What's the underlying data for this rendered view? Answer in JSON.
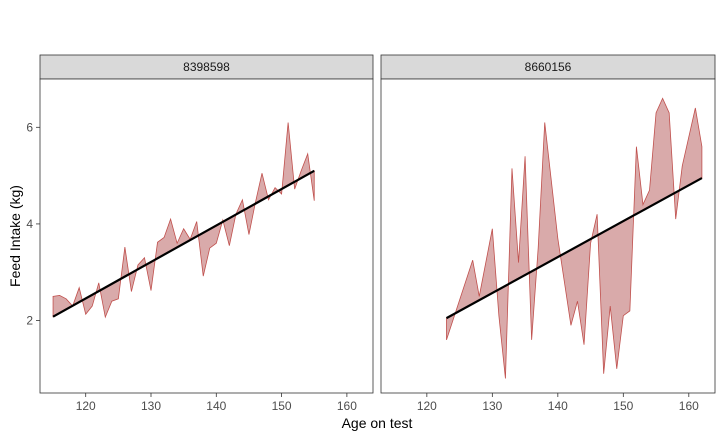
{
  "chart_data": {
    "type": "area",
    "xlabel": "Age on test",
    "ylabel": "Feed Intake (kg)",
    "ylim": [
      0.5,
      7.0
    ],
    "y_ticks": [
      2,
      4,
      6
    ],
    "grid": false,
    "colors": {
      "area": "#d9aaaa",
      "area_stroke": "#c0504d",
      "trend": "#000000",
      "strip": "#d9d9d9"
    },
    "panels": [
      {
        "strip_label": "8398598",
        "xlim": [
          113,
          164
        ],
        "x_ticks": [
          120,
          130,
          140,
          150,
          160
        ],
        "series": [
          {
            "values": [
              [
                115,
                2.5
              ],
              [
                116,
                2.52
              ],
              [
                117,
                2.45
              ],
              [
                118,
                2.3
              ],
              [
                119,
                2.68
              ],
              [
                120,
                2.13
              ],
              [
                121,
                2.3
              ],
              [
                122,
                2.78
              ],
              [
                123,
                2.07
              ],
              [
                124,
                2.4
              ],
              [
                125,
                2.45
              ],
              [
                126,
                3.52
              ],
              [
                127,
                2.6
              ],
              [
                128,
                3.15
              ],
              [
                129,
                3.3
              ],
              [
                130,
                2.62
              ],
              [
                131,
                3.62
              ],
              [
                132,
                3.72
              ],
              [
                133,
                4.1
              ],
              [
                134,
                3.6
              ],
              [
                135,
                3.9
              ],
              [
                136,
                3.68
              ],
              [
                137,
                4.05
              ],
              [
                138,
                2.92
              ],
              [
                139,
                3.5
              ],
              [
                140,
                3.6
              ],
              [
                141,
                4.08
              ],
              [
                142,
                3.55
              ],
              [
                143,
                4.2
              ],
              [
                144,
                4.5
              ],
              [
                145,
                3.78
              ],
              [
                146,
                4.45
              ],
              [
                147,
                5.05
              ],
              [
                148,
                4.5
              ],
              [
                149,
                4.75
              ],
              [
                150,
                4.62
              ],
              [
                151,
                6.1
              ],
              [
                152,
                4.72
              ],
              [
                153,
                5.1
              ],
              [
                154,
                5.45
              ],
              [
                155,
                4.48
              ]
            ]
          },
          {
            "name": "",
            "values": [
              [
                115,
                2.08
              ],
              [
                155,
                5.1
              ]
            ]
          }
        ]
      },
      {
        "strip_label": "8660156",
        "xlim": [
          113,
          164
        ],
        "x_ticks": [
          120,
          130,
          140,
          150,
          160
        ],
        "series": [
          {
            "values": [
              [
                123,
                1.6
              ],
              [
                127,
                3.25
              ],
              [
                128,
                2.5
              ],
              [
                130,
                3.9
              ],
              [
                131,
                2.1
              ],
              [
                132,
                0.8
              ],
              [
                133,
                5.15
              ],
              [
                134,
                3.2
              ],
              [
                135,
                5.4
              ],
              [
                136,
                1.6
              ],
              [
                137,
                3.5
              ],
              [
                138,
                6.1
              ],
              [
                140,
                3.7
              ],
              [
                142,
                1.9
              ],
              [
                143,
                2.4
              ],
              [
                144,
                1.5
              ],
              [
                145,
                3.6
              ],
              [
                146,
                4.2
              ],
              [
                147,
                0.9
              ],
              [
                148,
                2.3
              ],
              [
                149,
                1.0
              ],
              [
                150,
                2.1
              ],
              [
                151,
                2.2
              ],
              [
                152,
                5.6
              ],
              [
                153,
                4.4
              ],
              [
                154,
                4.7
              ],
              [
                155,
                6.3
              ],
              [
                156,
                6.6
              ],
              [
                157,
                6.3
              ],
              [
                158,
                4.1
              ],
              [
                159,
                5.2
              ],
              [
                161,
                6.4
              ],
              [
                162,
                5.6
              ]
            ]
          },
          {
            "name": "",
            "values": [
              [
                123,
                2.05
              ],
              [
                162,
                4.95
              ]
            ]
          }
        ]
      }
    ]
  }
}
